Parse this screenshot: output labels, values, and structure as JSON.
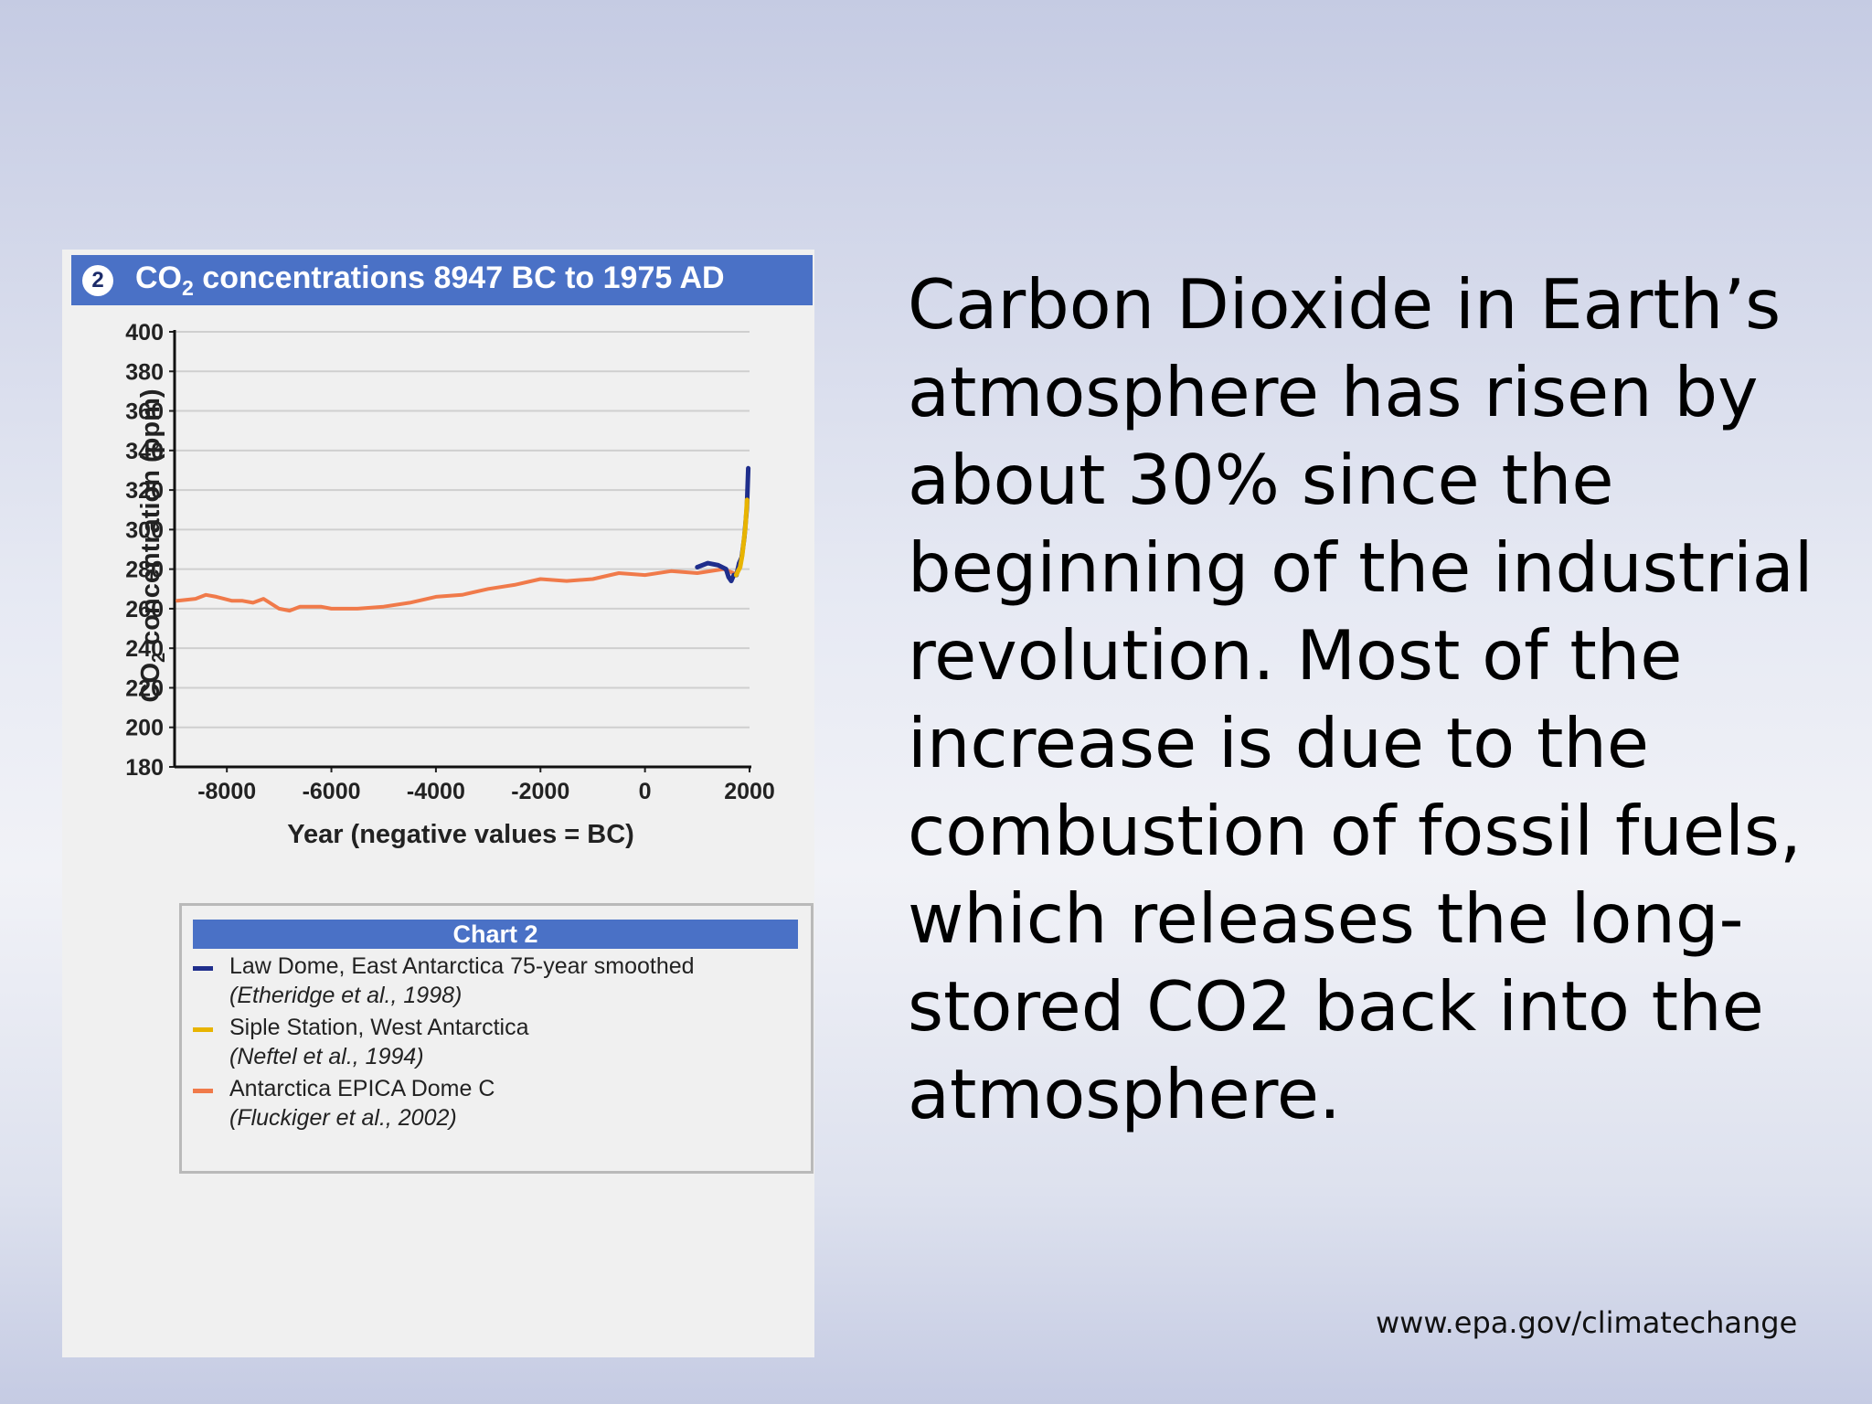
{
  "slide": {
    "body_text": "Carbon Dioxide in Earth’s atmosphere has risen by about 30% since the beginning of the industrial revolution. Most of the increase is due to the combustion of fossil fuels, which releases the long-stored CO2 back into the atmosphere.",
    "source_url": "www.epa.gov/climatechange"
  },
  "chart_data": {
    "type": "line",
    "badge": "2",
    "title": "CO2 concentrations 8947 BC to 1975 AD",
    "xlabel": "Year (negative values = BC)",
    "ylabel": "CO2 concentration (ppm)",
    "xlim": [
      -9000,
      2000
    ],
    "ylim": [
      180,
      400
    ],
    "x_ticks": [
      -8000,
      -6000,
      -4000,
      -2000,
      0,
      2000
    ],
    "x_tick_labels": [
      "-8000",
      "-6000",
      "-4000",
      "-2000",
      "0",
      "2000"
    ],
    "y_ticks": [
      180,
      200,
      220,
      240,
      260,
      280,
      300,
      320,
      340,
      360,
      380,
      400
    ],
    "grid": true,
    "legend_title": "Chart 2",
    "legend_position": "below",
    "series": [
      {
        "name": "Antarctica EPICA Dome C",
        "citation": "(Fluckiger et al., 2002)",
        "color": "#f07a4a",
        "x": [
          -8947,
          -8600,
          -8400,
          -8200,
          -7900,
          -7700,
          -7500,
          -7300,
          -7000,
          -6800,
          -6600,
          -6400,
          -6200,
          -6000,
          -5500,
          -5000,
          -4500,
          -4000,
          -3500,
          -3000,
          -2500,
          -2000,
          -1500,
          -1000,
          -500,
          0,
          500,
          1000,
          1500,
          1700
        ],
        "y": [
          264,
          265,
          267,
          266,
          264,
          264,
          263,
          265,
          260,
          259,
          261,
          261,
          261,
          260,
          260,
          261,
          263,
          266,
          267,
          270,
          272,
          275,
          274,
          275,
          278,
          277,
          279,
          278,
          280,
          278
        ]
      },
      {
        "name": "Law Dome, East Antarctica 75-year smoothed",
        "citation": "(Etheridge et al., 1998)",
        "color": "#1f2e8c",
        "x": [
          1000,
          1200,
          1400,
          1550,
          1600,
          1650,
          1700,
          1750,
          1800,
          1850,
          1900,
          1950,
          1975
        ],
        "y": [
          281,
          283,
          282,
          280,
          276,
          274,
          277,
          277,
          283,
          286,
          296,
          311,
          331
        ]
      },
      {
        "name": "Siple Station, West Antarctica",
        "citation": "(Neftel et al., 1994)",
        "color": "#e8b400",
        "x": [
          1744,
          1780,
          1820,
          1860,
          1890,
          1920,
          1950,
          1953
        ],
        "y": [
          277,
          279,
          281,
          287,
          294,
          301,
          313,
          315
        ]
      }
    ]
  }
}
